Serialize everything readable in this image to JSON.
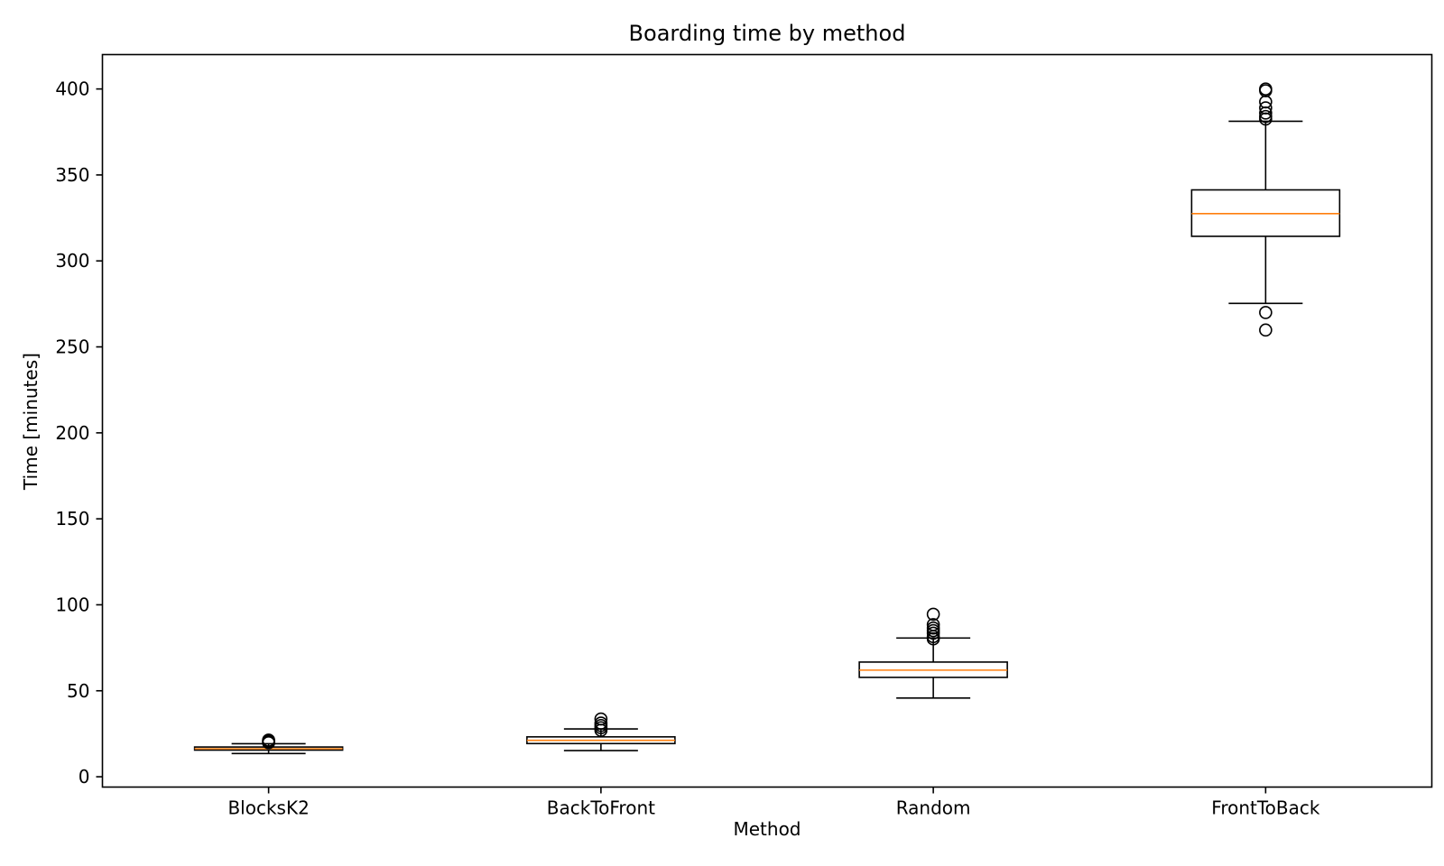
{
  "chart_data": {
    "type": "box",
    "title": "Boarding time by method",
    "xlabel": "Method",
    "ylabel": "Time [minutes]",
    "ylim": [
      -6,
      420
    ],
    "yticks": [
      0,
      50,
      100,
      150,
      200,
      250,
      300,
      350,
      400
    ],
    "ytick_labels": [
      "0",
      "50",
      "100",
      "150",
      "200",
      "250",
      "300",
      "350",
      "400"
    ],
    "categories": [
      "BlocksK2",
      "BackToFront",
      "Random",
      "FrontToBack"
    ],
    "grid": false,
    "colors": {
      "box": "#000000",
      "median": "#ff7f0e",
      "flier": "#000000"
    },
    "boxes": [
      {
        "name": "BlocksK2",
        "whisker_low": 13.5,
        "q1": 15.5,
        "median": 16.3,
        "q3": 17.3,
        "whisker_high": 19.2,
        "fliers": [
          19.8,
          20.3,
          20.8,
          21.3
        ]
      },
      {
        "name": "BackToFront",
        "whisker_low": 15.2,
        "q1": 19.3,
        "median": 21.2,
        "q3": 23.2,
        "whisker_high": 27.8,
        "fliers": [
          27.0,
          28.5,
          29.8,
          31.2,
          33.6
        ]
      },
      {
        "name": "Random",
        "whisker_low": 45.8,
        "q1": 57.8,
        "median": 62.0,
        "q3": 66.7,
        "whisker_high": 80.7,
        "fliers": [
          80.2,
          81.5,
          83.5,
          85.0,
          86.5,
          88.5,
          94.5
        ]
      },
      {
        "name": "FrontToBack",
        "whisker_low": 275.3,
        "q1": 314.3,
        "median": 327.5,
        "q3": 341.3,
        "whisker_high": 381.2,
        "fliers": [
          259.8,
          270.0,
          382.5,
          384.0,
          386.0,
          389.0,
          392.5,
          399.0,
          400.0
        ]
      }
    ]
  }
}
